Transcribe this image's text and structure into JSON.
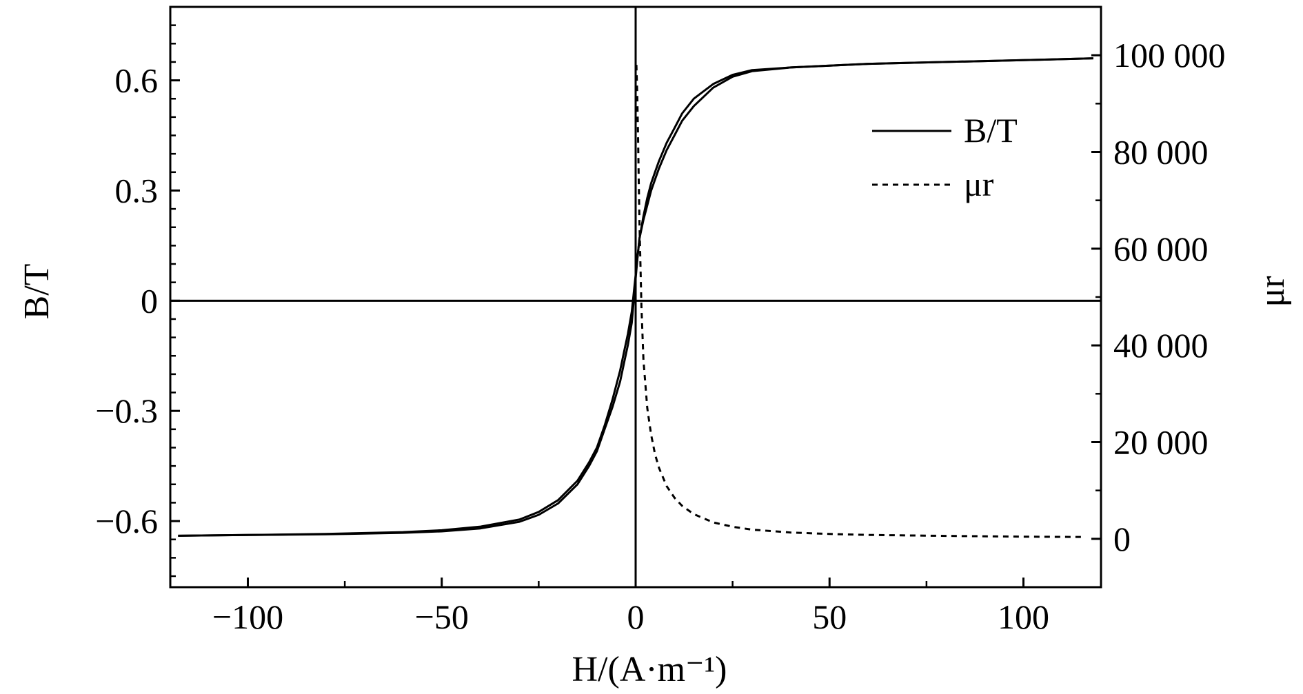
{
  "chart_data": {
    "type": "line",
    "title": "",
    "xlabel": "H/(A·m⁻¹)",
    "ylabel": "B/T",
    "y2label": "μr",
    "xlim": [
      -120,
      120
    ],
    "ylim": [
      -0.78,
      0.8
    ],
    "y2lim": [
      -10000,
      110000
    ],
    "xticks": [
      -100,
      -50,
      0,
      50,
      100
    ],
    "xtick_labels": [
      "−100",
      "−50",
      "0",
      "50",
      "100"
    ],
    "yticks": [
      -0.6,
      -0.3,
      0,
      0.3,
      0.6
    ],
    "ytick_labels": [
      "−0.6",
      "−0.3",
      "0",
      "0.3",
      "0.6"
    ],
    "y2ticks": [
      0,
      20000,
      40000,
      60000,
      80000,
      100000
    ],
    "y2tick_labels": [
      "0",
      "20 000",
      "40 000",
      "60 000",
      "80 000",
      "100 000"
    ],
    "grid": false,
    "legend": "top-right",
    "legend_entries": [
      {
        "label": "B/T",
        "style": "solid"
      },
      {
        "label": "μr",
        "style": "dashed"
      }
    ],
    "series": [
      {
        "name": "B/T",
        "axis": "left",
        "style": "solid",
        "branch": "ascending",
        "x": [
          -118,
          -100,
          -80,
          -60,
          -50,
          -40,
          -30,
          -25,
          -20,
          -15,
          -12,
          -10,
          -8,
          -6,
          -4,
          -3,
          -2,
          -1,
          -0.5,
          0,
          0.5,
          1,
          2,
          3,
          4,
          5,
          6,
          8,
          10,
          12,
          15,
          20,
          25,
          30,
          40,
          50,
          60,
          80,
          100,
          118
        ],
        "y": [
          -0.64,
          -0.638,
          -0.635,
          -0.63,
          -0.625,
          -0.615,
          -0.596,
          -0.575,
          -0.543,
          -0.49,
          -0.44,
          -0.4,
          -0.34,
          -0.27,
          -0.19,
          -0.14,
          -0.09,
          -0.03,
          0.02,
          0.07,
          0.12,
          0.17,
          0.22,
          0.26,
          0.3,
          0.33,
          0.36,
          0.41,
          0.45,
          0.49,
          0.53,
          0.58,
          0.61,
          0.625,
          0.635,
          0.64,
          0.645,
          0.65,
          0.655,
          0.66
        ]
      },
      {
        "name": "B/T",
        "axis": "left",
        "style": "solid",
        "branch": "descending",
        "x": [
          118,
          100,
          80,
          60,
          50,
          40,
          30,
          25,
          20,
          15,
          12,
          10,
          8,
          6,
          5,
          4,
          3,
          2,
          1,
          0.5,
          0,
          -0.5,
          -1,
          -2,
          -3,
          -4,
          -6,
          -8,
          -10,
          -12,
          -15,
          -20,
          -25,
          -30,
          -40,
          -50,
          -60,
          -80,
          -100,
          -118
        ],
        "y": [
          0.66,
          0.655,
          0.65,
          0.645,
          0.64,
          0.635,
          0.628,
          0.615,
          0.59,
          0.55,
          0.51,
          0.47,
          0.43,
          0.38,
          0.35,
          0.32,
          0.28,
          0.23,
          0.17,
          0.12,
          0.06,
          0.0,
          -0.06,
          -0.12,
          -0.17,
          -0.22,
          -0.29,
          -0.35,
          -0.41,
          -0.45,
          -0.5,
          -0.552,
          -0.583,
          -0.602,
          -0.62,
          -0.628,
          -0.632,
          -0.636,
          -0.638,
          -0.64
        ]
      },
      {
        "name": "μr",
        "axis": "right",
        "style": "dashed",
        "x": [
          0.2,
          0.4,
          0.6,
          0.8,
          1,
          1.5,
          2,
          3,
          4,
          5,
          6,
          8,
          10,
          12,
          15,
          20,
          25,
          30,
          40,
          50,
          60,
          80,
          100,
          116
        ],
        "y": [
          98000,
          92000,
          84000,
          74000,
          65000,
          48000,
          37000,
          27000,
          21500,
          17500,
          14700,
          10900,
          8500,
          6800,
          5100,
          3400,
          2500,
          1900,
          1300,
          1000,
          800,
          600,
          450,
          380
        ]
      }
    ]
  }
}
